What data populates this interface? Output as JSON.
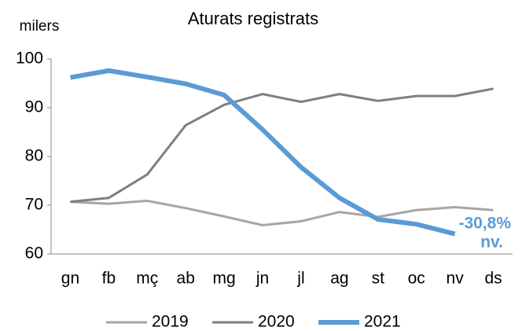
{
  "chart_data": {
    "type": "line",
    "title": "Aturats registrats",
    "y_label": "milers",
    "categories": [
      "gn",
      "fb",
      "mç",
      "ab",
      "mg",
      "jn",
      "jl",
      "ag",
      "st",
      "oc",
      "nv",
      "ds"
    ],
    "series": [
      {
        "name": "2019",
        "color": "#a6a6a6",
        "values": [
          70.7,
          70.3,
          70.9,
          69.4,
          67.7,
          65.9,
          66.7,
          68.6,
          67.6,
          69.0,
          69.6,
          69.0
        ]
      },
      {
        "name": "2020",
        "color": "#7f7f7f",
        "values": [
          70.7,
          71.5,
          76.3,
          86.4,
          90.6,
          92.8,
          91.2,
          92.8,
          91.4,
          92.4,
          92.4,
          93.9
        ]
      },
      {
        "name": "2021",
        "color": "#5b9bd5",
        "values": [
          96.2,
          97.6,
          96.3,
          94.9,
          92.6,
          85.5,
          77.8,
          71.5,
          67.1,
          66.1,
          64.1,
          null
        ]
      }
    ],
    "annotations": [
      "-30,8%",
      "nv."
    ],
    "ylim": [
      60,
      100
    ],
    "yticks": [
      60,
      70,
      80,
      90,
      100
    ],
    "grid": false,
    "legend": "bottom"
  }
}
